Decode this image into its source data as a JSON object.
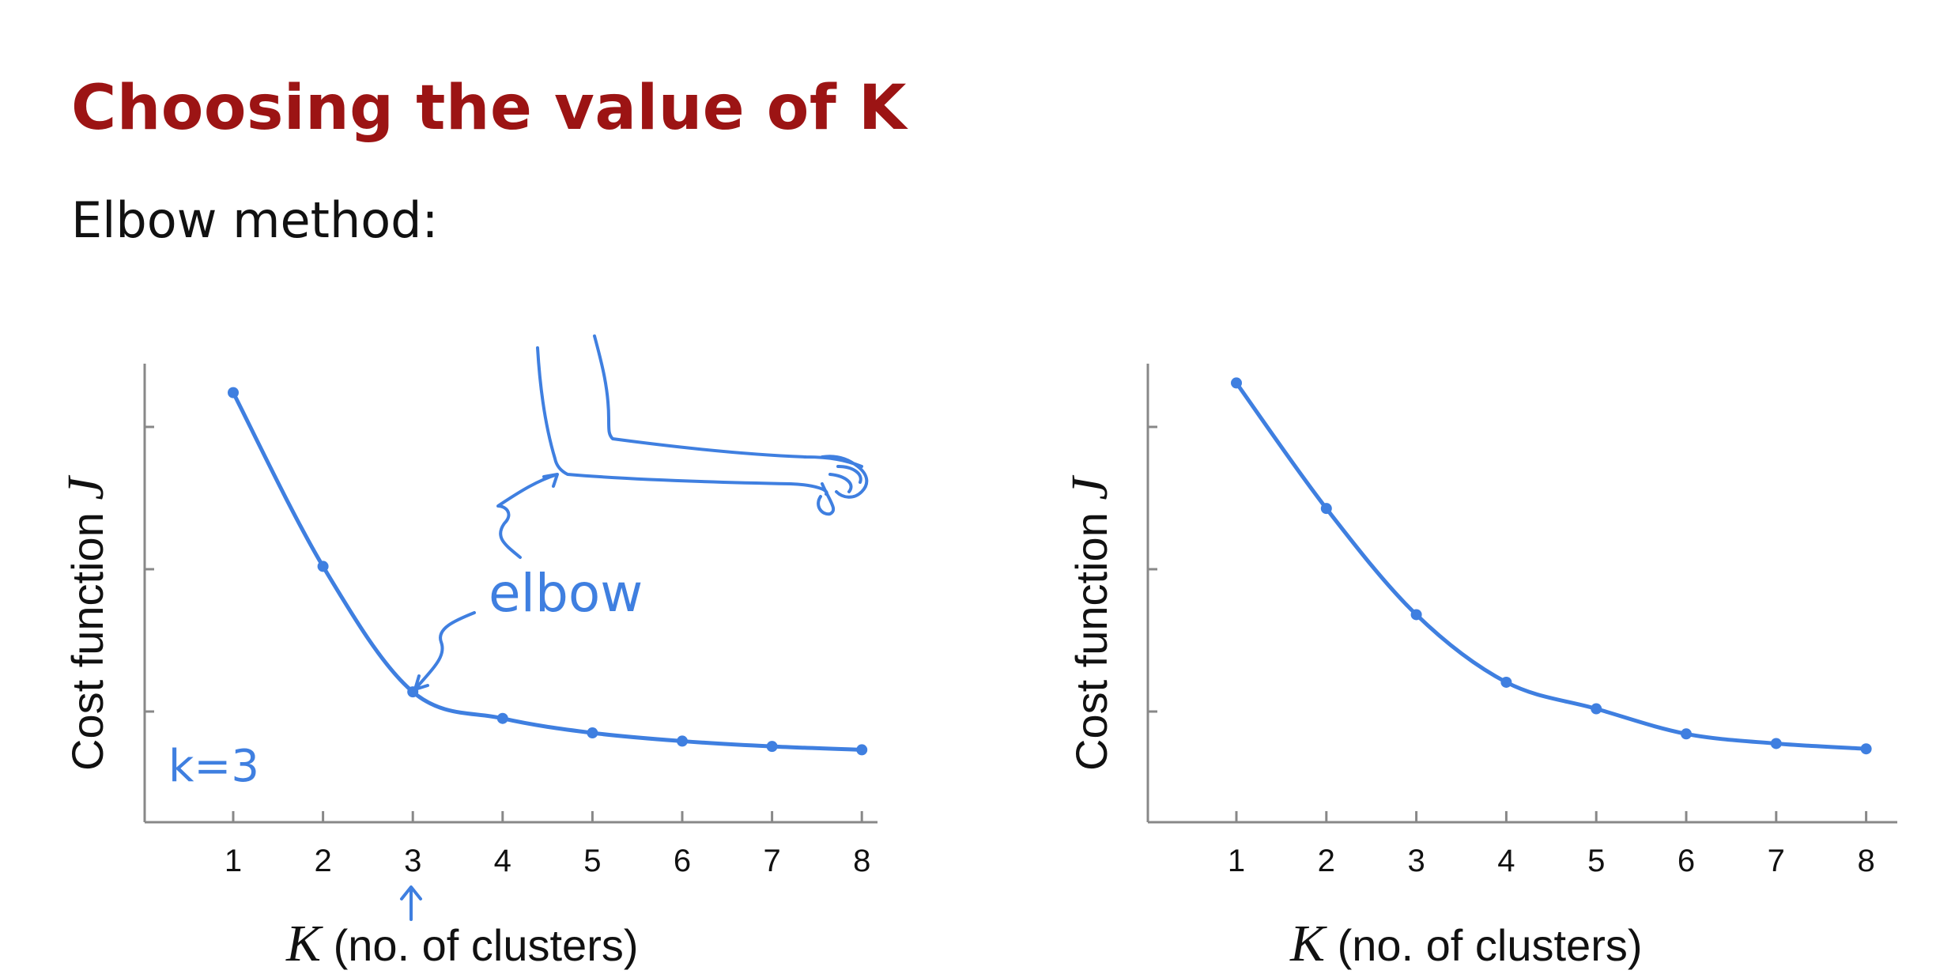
{
  "slide": {
    "title": "Choosing the value of K",
    "subtitle": "Elbow method:"
  },
  "chart_data": [
    {
      "type": "line",
      "ylabel": "Cost function",
      "ylabel_symbol": "J",
      "xlabel_symbol": "K",
      "xlabel": "(no. of clusters)",
      "categories": [
        "1",
        "2",
        "3",
        "4",
        "5",
        "6",
        "7",
        "8"
      ],
      "x": [
        1,
        2,
        3,
        4,
        5,
        6,
        7,
        8
      ],
      "values": [
        8.9,
        5.3,
        2.7,
        2.15,
        1.85,
        1.68,
        1.57,
        1.5
      ],
      "ylim": [
        0,
        9.5
      ],
      "series_color": "#3f7fe0",
      "annotations": {
        "elbow": "elbow",
        "k_choice": "k=3"
      }
    },
    {
      "type": "line",
      "ylabel": "Cost function",
      "ylabel_symbol": "J",
      "xlabel_symbol": "K",
      "xlabel": "(no. of clusters)",
      "categories": [
        "1",
        "2",
        "3",
        "4",
        "5",
        "6",
        "7",
        "8"
      ],
      "x": [
        1,
        2,
        3,
        4,
        5,
        6,
        7,
        8
      ],
      "values": [
        9.1,
        6.5,
        4.3,
        2.9,
        2.35,
        1.83,
        1.63,
        1.52
      ],
      "ylim": [
        0,
        9.5
      ],
      "series_color": "#3f7fe0"
    }
  ]
}
